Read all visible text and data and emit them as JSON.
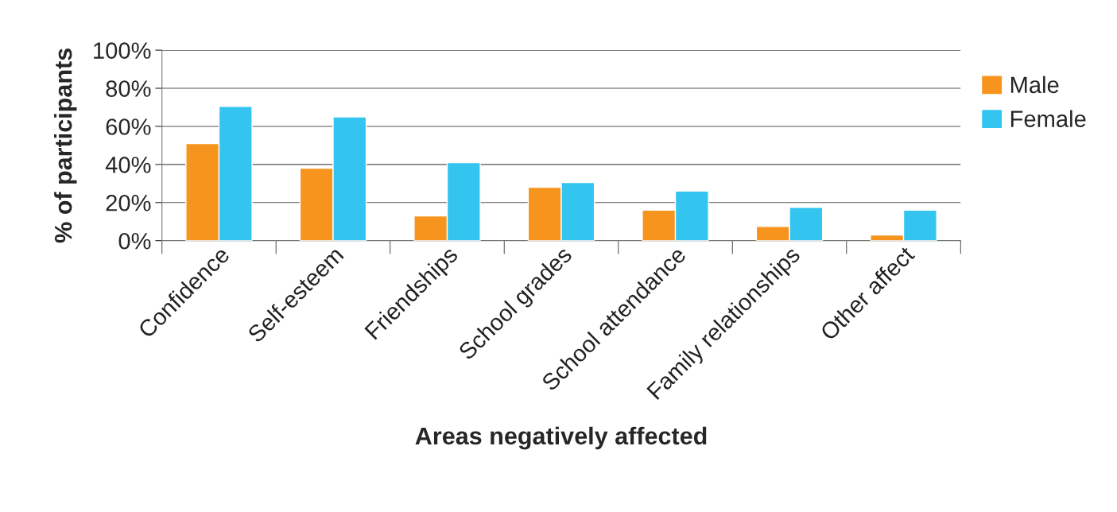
{
  "chart_data": {
    "type": "bar",
    "xlabel": "Areas negatively affected",
    "ylabel": "% of participants",
    "categories": [
      "Confidence",
      "Self-esteem",
      "Friendships",
      "School grades",
      "School attendance",
      "Family relationships",
      "Other affect"
    ],
    "series": [
      {
        "name": "Male",
        "color": "#f7941d",
        "values": [
          51,
          38,
          13,
          28,
          16,
          7.5,
          3
        ]
      },
      {
        "name": "Female",
        "color": "#33c4f0",
        "values": [
          70.5,
          65,
          41,
          30.5,
          26,
          17.5,
          16
        ]
      }
    ],
    "ylim": [
      0,
      100
    ],
    "yticks": [
      {
        "value": 0,
        "label": "0%"
      },
      {
        "value": 20,
        "label": "20%"
      },
      {
        "value": 40,
        "label": "40%"
      },
      {
        "value": 60,
        "label": "60%"
      },
      {
        "value": 80,
        "label": "80%"
      },
      {
        "value": 100,
        "label": "100%"
      }
    ],
    "grid": "y",
    "legend": "right"
  }
}
